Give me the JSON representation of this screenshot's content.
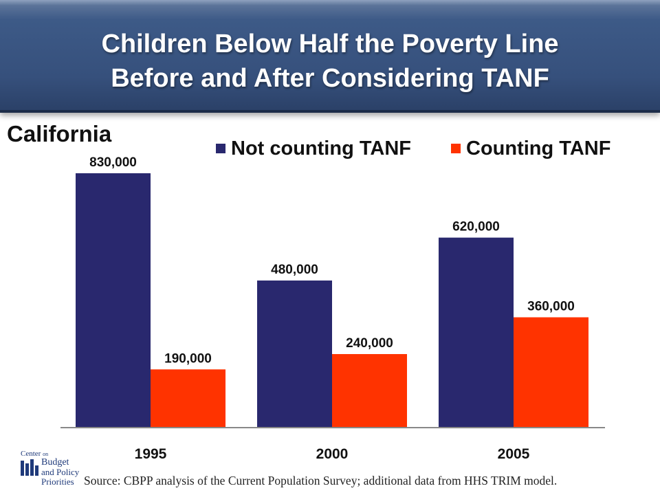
{
  "header": {
    "title_line1": "Children Below Half the Poverty Line",
    "title_line2": "Before and After Considering TANF"
  },
  "region_label": "California",
  "legend": [
    {
      "label": "Not counting TANF",
      "color": "#29286e"
    },
    {
      "label": "Counting TANF",
      "color": "#ff3300"
    }
  ],
  "chart_data": {
    "type": "bar",
    "title": "Children Below Half the Poverty Line Before and After Considering TANF",
    "categories": [
      "1995",
      "2000",
      "2005"
    ],
    "series": [
      {
        "name": "Not counting TANF",
        "values": [
          830000,
          480000,
          620000
        ],
        "labels": [
          "830,000",
          "480,000",
          "620,000"
        ],
        "color": "#29286e"
      },
      {
        "name": "Counting TANF",
        "values": [
          190000,
          240000,
          360000
        ],
        "labels": [
          "190,000",
          "240,000",
          "360,000"
        ],
        "color": "#ff3300"
      }
    ],
    "ylim": [
      0,
      830000
    ],
    "grid": false,
    "legend_position": "top-right"
  },
  "source": "Source: CBPP analysis of the Current Population Survey; additional data from HHS TRIM model.",
  "logo": {
    "line1": "Center",
    "line1_small": "on",
    "line2": "Budget",
    "line3": "and Policy",
    "line4": "Priorities",
    "color": "#1f3a7a"
  }
}
